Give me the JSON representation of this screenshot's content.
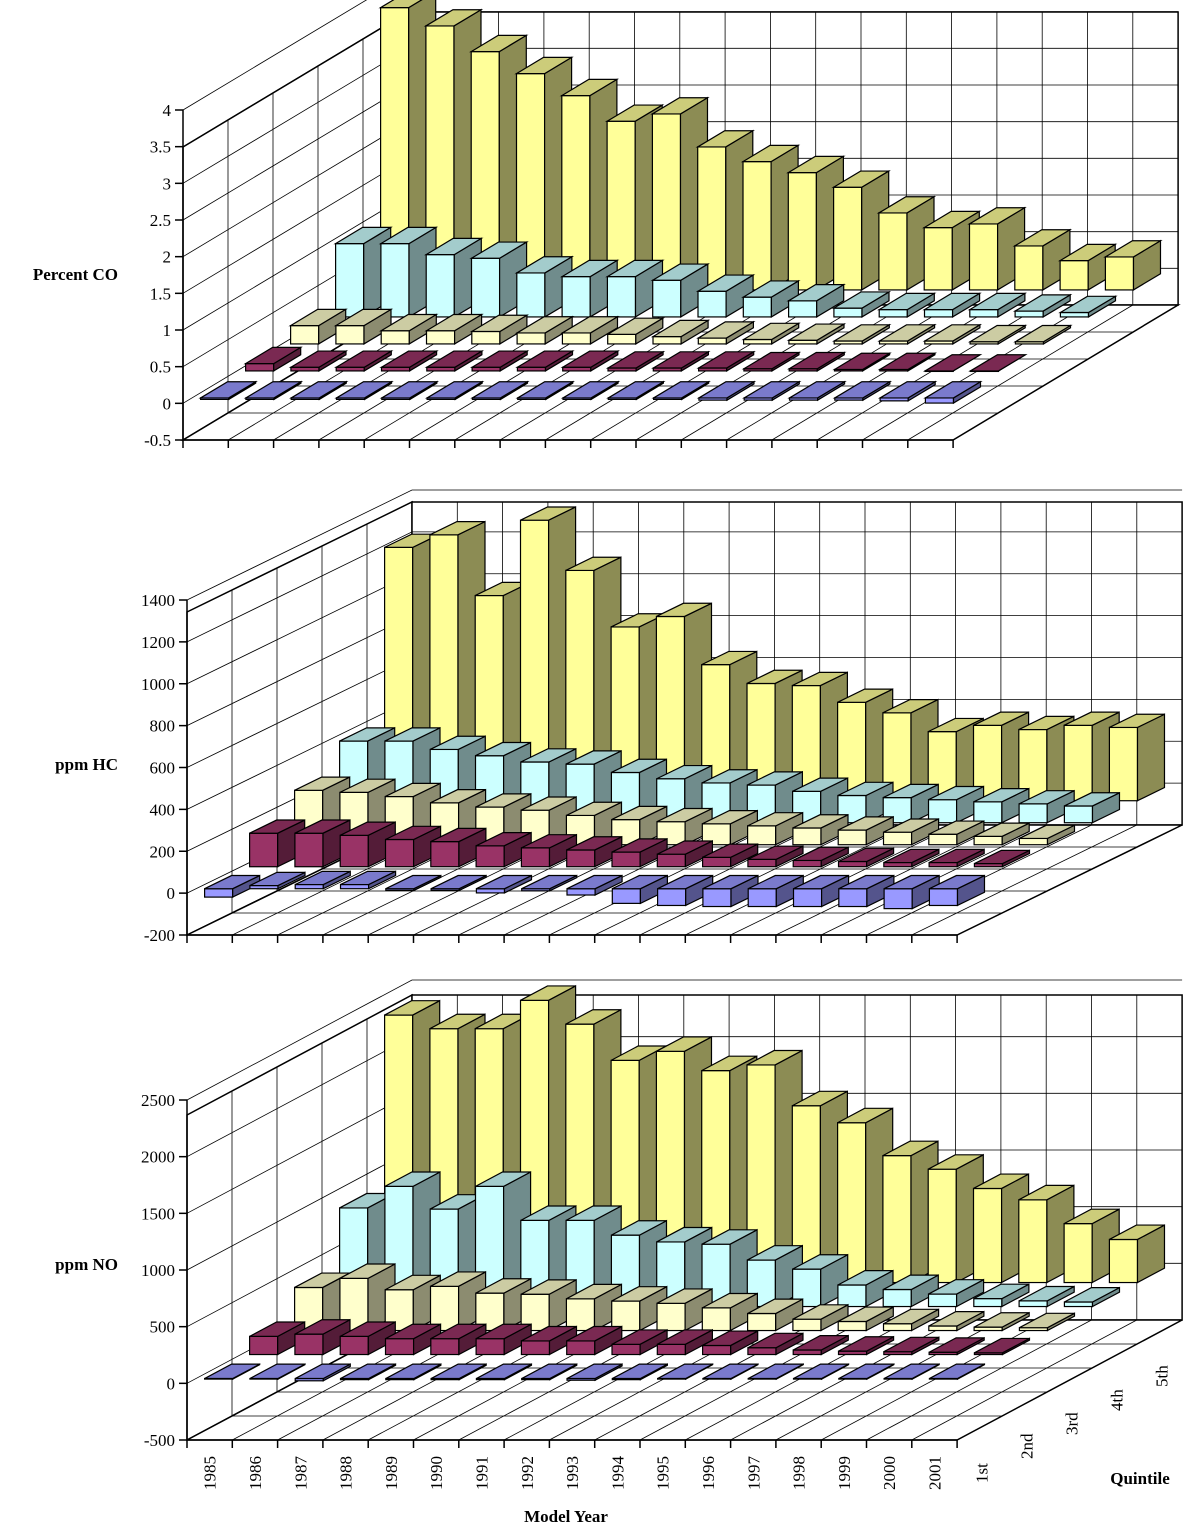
{
  "chart_data": [
    {
      "type": "bar3d",
      "ylabel": "Percent CO",
      "yticks": [
        "4",
        "3.5",
        "3",
        "2.5",
        "2",
        "1.5",
        "1",
        "0.5",
        "0",
        "-0.5"
      ],
      "ylim": [
        -0.5,
        4
      ],
      "categories": [
        "1985",
        "1986",
        "1987",
        "1988",
        "1989",
        "1990",
        "1991",
        "1992",
        "1993",
        "1994",
        "1995",
        "1996",
        "1997",
        "1998",
        "1999",
        "2000",
        "2001"
      ],
      "series": [
        {
          "name": "1st",
          "values": [
            -0.02,
            -0.02,
            -0.02,
            -0.02,
            -0.02,
            -0.02,
            -0.02,
            -0.02,
            -0.02,
            -0.02,
            -0.02,
            -0.03,
            -0.03,
            -0.03,
            -0.03,
            -0.04,
            -0.07
          ]
        },
        {
          "name": "2nd",
          "values": [
            0.1,
            0.05,
            0.05,
            0.05,
            0.05,
            0.05,
            0.05,
            0.05,
            0.04,
            0.04,
            0.04,
            0.03,
            0.03,
            0.02,
            0.02,
            0.0,
            0.0
          ]
        },
        {
          "name": "3rd",
          "values": [
            0.25,
            0.25,
            0.18,
            0.18,
            0.17,
            0.15,
            0.15,
            0.13,
            0.1,
            0.08,
            0.06,
            0.05,
            0.04,
            0.04,
            0.04,
            0.03,
            0.03
          ]
        },
        {
          "name": "4th",
          "values": [
            1.0,
            1.0,
            0.85,
            0.8,
            0.6,
            0.55,
            0.55,
            0.5,
            0.35,
            0.27,
            0.22,
            0.12,
            0.1,
            0.1,
            0.1,
            0.08,
            0.06
          ]
        },
        {
          "name": "5th",
          "values": [
            3.85,
            3.6,
            3.25,
            2.95,
            2.65,
            2.3,
            2.4,
            1.95,
            1.75,
            1.6,
            1.4,
            1.05,
            0.85,
            0.9,
            0.6,
            0.4,
            0.45
          ]
        }
      ]
    },
    {
      "type": "bar3d",
      "ylabel": "ppm HC",
      "yticks": [
        "1400",
        "1200",
        "1000",
        "800",
        "600",
        "400",
        "200",
        "0",
        "-200"
      ],
      "ylim": [
        -200,
        1400
      ],
      "categories": [
        "1985",
        "1986",
        "1987",
        "1988",
        "1989",
        "1990",
        "1991",
        "1992",
        "1993",
        "1994",
        "1995",
        "1996",
        "1997",
        "1998",
        "1999",
        "2000",
        "2001"
      ],
      "series": [
        {
          "name": "1st",
          "values": [
            -40,
            15,
            20,
            20,
            -8,
            -8,
            -20,
            -10,
            -30,
            -70,
            -80,
            -85,
            -85,
            -85,
            -85,
            -95,
            -80
          ]
        },
        {
          "name": "2nd",
          "values": [
            160,
            160,
            150,
            130,
            120,
            100,
            90,
            80,
            70,
            60,
            45,
            35,
            30,
            25,
            20,
            20,
            15
          ]
        },
        {
          "name": "3rd",
          "values": [
            260,
            250,
            230,
            200,
            180,
            165,
            140,
            120,
            110,
            100,
            90,
            80,
            70,
            60,
            50,
            40,
            30
          ]
        },
        {
          "name": "4th",
          "values": [
            390,
            390,
            350,
            320,
            290,
            280,
            240,
            210,
            190,
            180,
            150,
            130,
            120,
            110,
            100,
            90,
            80
          ]
        },
        {
          "name": "5th",
          "values": [
            1210,
            1270,
            980,
            1340,
            1100,
            830,
            880,
            650,
            560,
            550,
            470,
            420,
            330,
            360,
            340,
            360,
            350
          ]
        }
      ]
    },
    {
      "type": "bar3d",
      "ylabel": "ppm NO",
      "yticks": [
        "2500",
        "2000",
        "1500",
        "1000",
        "500",
        "0",
        "-500"
      ],
      "ylim": [
        -500,
        2500
      ],
      "categories": [
        "1985",
        "1986",
        "1987",
        "1988",
        "1989",
        "1990",
        "1991",
        "1992",
        "1993",
        "1994",
        "1995",
        "1996",
        "1997",
        "1998",
        "1999",
        "2000",
        "2001"
      ],
      "series": [
        {
          "name": "1st",
          "values": [
            -5,
            -5,
            -20,
            -10,
            -10,
            -10,
            -10,
            -10,
            -15,
            -10,
            -5,
            -5,
            -5,
            -5,
            -5,
            -5,
            -5
          ]
        },
        {
          "name": "2nd",
          "values": [
            160,
            180,
            160,
            140,
            140,
            140,
            120,
            120,
            90,
            90,
            80,
            60,
            40,
            30,
            25,
            20,
            15
          ]
        },
        {
          "name": "3rd",
          "values": [
            380,
            460,
            360,
            390,
            330,
            320,
            280,
            260,
            240,
            200,
            150,
            100,
            80,
            60,
            40,
            30,
            25
          ]
        },
        {
          "name": "4th",
          "values": [
            870,
            1060,
            860,
            1060,
            760,
            760,
            630,
            570,
            550,
            410,
            330,
            190,
            150,
            110,
            70,
            50,
            40
          ]
        },
        {
          "name": "5th",
          "values": [
            2360,
            2240,
            2240,
            2490,
            2280,
            1960,
            2040,
            1870,
            1920,
            1560,
            1410,
            1120,
            1000,
            830,
            730,
            520,
            380
          ]
        }
      ]
    }
  ],
  "xlabel": "Model Year",
  "quintile_label": "Quintile",
  "colors": {
    "1st": "#9999ff",
    "2nd": "#993366",
    "3rd": "#ffffcc",
    "4th": "#ccffff",
    "5th": "#ffff99"
  }
}
